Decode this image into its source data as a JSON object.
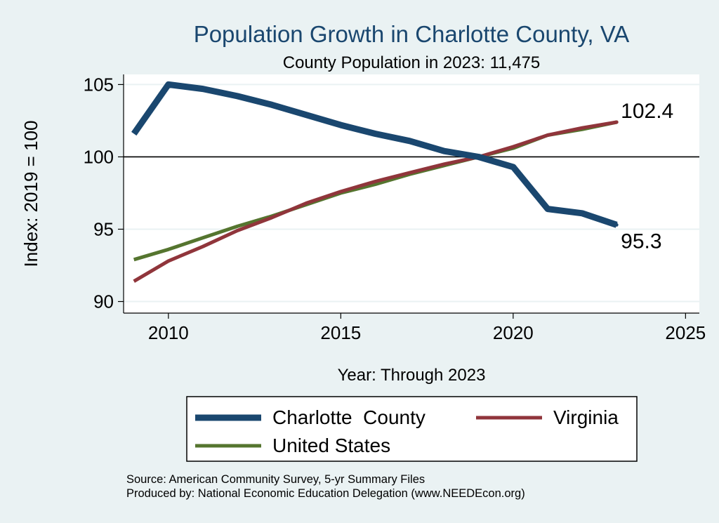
{
  "chart_data": {
    "type": "line",
    "title": "Population Growth in Charlotte County, VA",
    "subtitle": "County Population in 2023: 11,475",
    "xlabel": "Year: Through 2023",
    "ylabel": "Index: 2019 = 100",
    "xlim": [
      2008.7,
      2025.4
    ],
    "ylim": [
      89.2,
      105.7
    ],
    "xticks": [
      2010,
      2015,
      2020,
      2025
    ],
    "yticks": [
      90,
      95,
      100,
      105
    ],
    "reference_line": 100,
    "grid": true,
    "legend_position": "bottom",
    "x": [
      2009,
      2010,
      2011,
      2012,
      2013,
      2014,
      2015,
      2016,
      2017,
      2018,
      2019,
      2020,
      2021,
      2022,
      2023
    ],
    "series": [
      {
        "name": "Charlotte  County",
        "color": "#1a476f",
        "width": 9,
        "values": [
          101.6,
          105.0,
          104.7,
          104.2,
          103.6,
          102.9,
          102.2,
          101.6,
          101.1,
          100.4,
          100.0,
          99.3,
          96.4,
          96.1,
          95.3
        ]
      },
      {
        "name": "Virginia",
        "color": "#90353b",
        "width": 5,
        "values": [
          91.4,
          92.8,
          93.8,
          94.9,
          95.8,
          96.8,
          97.6,
          98.3,
          98.9,
          99.5,
          100.0,
          100.7,
          101.5,
          102.0,
          102.4
        ]
      },
      {
        "name": "United States",
        "color": "#55752f",
        "width": 5,
        "values": [
          92.9,
          93.6,
          94.4,
          95.2,
          95.9,
          96.7,
          97.5,
          98.1,
          98.8,
          99.4,
          100.0,
          100.6,
          101.5,
          101.9,
          102.4
        ]
      }
    ],
    "annotations": [
      {
        "text": "102.4",
        "x": 2023,
        "y": 102.4
      },
      {
        "text": "95.3",
        "x": 2023,
        "y": 95.3
      }
    ]
  },
  "footer": {
    "source": "Source: American Community Survey, 5-yr Summary Files",
    "producer": "Produced by: National Economic Education Delegation (www.NEEDEcon.org)"
  }
}
